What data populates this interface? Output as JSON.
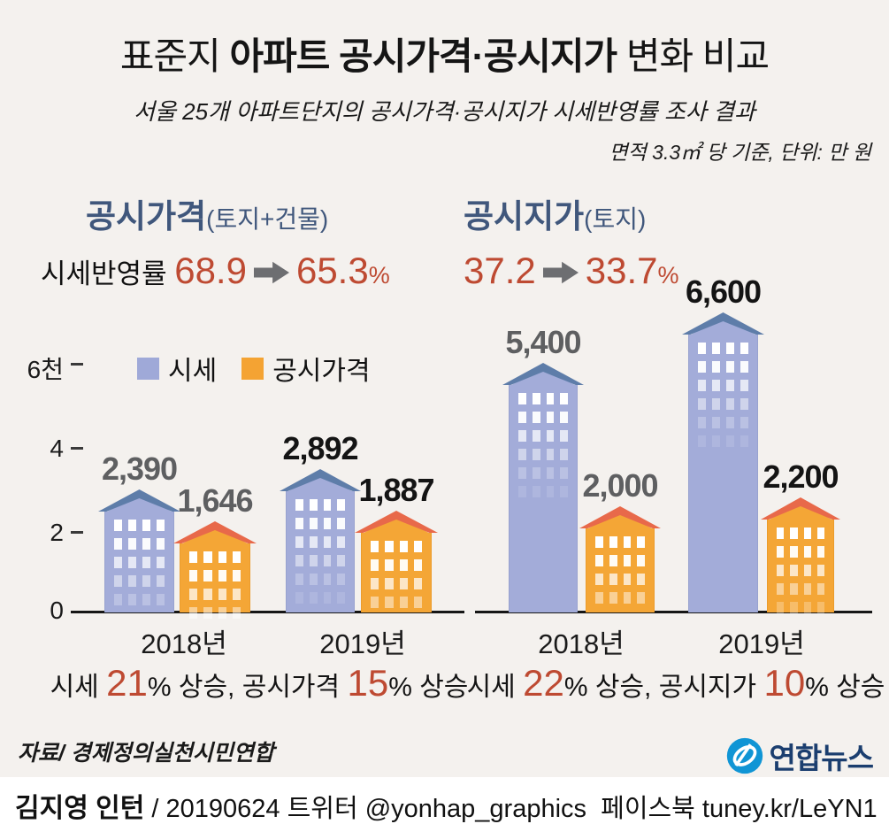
{
  "title": {
    "pre": "표준지 ",
    "bold": "아파트 공시가격·공시지가",
    "post": " 변화 비교"
  },
  "subtitle": "서울 25개 아파트단지의 공시가격·공시지가 시세반영률 조사 결과",
  "unit_note": "면적 3.3㎡ 당 기준, 단위: 만 원",
  "legend": {
    "market": "시세",
    "official": "공시가격"
  },
  "colors": {
    "background": "#f4f1ee",
    "market_body": "#a3acd9",
    "market_roof": "#5e7da9",
    "official_body": "#f4a636",
    "official_roof": "#e8694a",
    "accent_red": "#be4a32",
    "navy_header": "#40577c",
    "arrow_gray": "#6d6e71",
    "label_gray_2018": "#5e5f61",
    "label_black_2019": "#141414",
    "yonhap_blue": "#1095d5",
    "yonhap_navy": "#1b3e6f"
  },
  "chart_data": [
    {
      "type": "bar",
      "section_title": "공시가격",
      "section_subtitle": "(토지+건물)",
      "rate_label": "시세반영률 ",
      "rate_from": "68.9",
      "rate_to": "65.3",
      "rate_pct": "%",
      "categories": [
        "2018년",
        "2019년"
      ],
      "series": [
        {
          "name": "시세",
          "values": [
            2390,
            2892
          ],
          "labels": [
            "2,390",
            "2,892"
          ]
        },
        {
          "name": "공시가격",
          "values": [
            1646,
            1887
          ],
          "labels": [
            "1,646",
            "1,887"
          ]
        }
      ],
      "ylim": [
        0,
        6000
      ],
      "yticks": [
        "0",
        "2",
        "4",
        "6천"
      ],
      "yticks_values": [
        0,
        2000,
        4000,
        6000
      ],
      "caption": [
        {
          "text": "시세 "
        },
        {
          "text": "21"
        },
        {
          "text": "% 상승, 공시가격 "
        },
        {
          "text": "15"
        },
        {
          "text": "% 상승"
        }
      ]
    },
    {
      "type": "bar",
      "section_title": "공시지가",
      "section_subtitle": "(토지)",
      "rate_label": "",
      "rate_from": "37.2",
      "rate_to": "33.7",
      "rate_pct": "%",
      "categories": [
        "2018년",
        "2019년"
      ],
      "series": [
        {
          "name": "시세",
          "values": [
            5400,
            6600
          ],
          "labels": [
            "5,400",
            "6,600"
          ]
        },
        {
          "name": "공시지가",
          "values": [
            2000,
            2200
          ],
          "labels": [
            "2,000",
            "2,200"
          ]
        }
      ],
      "ylim": [
        0,
        6000
      ],
      "yticks": [
        "0",
        "2",
        "4",
        "6천"
      ],
      "yticks_values": [
        0,
        2000,
        4000,
        6000
      ],
      "caption": [
        {
          "text": "시세 "
        },
        {
          "text": "22"
        },
        {
          "text": "% 상승, 공시지가 "
        },
        {
          "text": "10"
        },
        {
          "text": "% 상승"
        }
      ]
    }
  ],
  "footer": {
    "source": "자료/ 경제정의실천시민연합",
    "logo_text": "연합뉴스",
    "byline_bold": "김지영 인턴",
    "byline_rest": " / 20190624 트위터 @yonhap_graphics  페이스북 tuney.kr/LeYN1"
  }
}
